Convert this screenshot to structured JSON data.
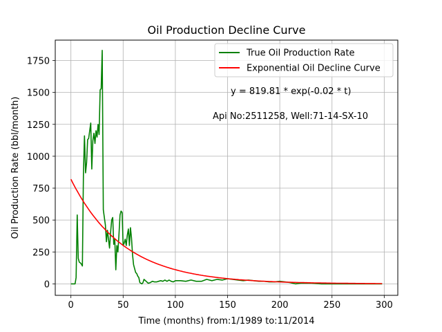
{
  "chart_data": {
    "type": "line",
    "title": "Oil Production Decline Curve",
    "xlabel": "Time (months) from:1/1989 to:11/2014",
    "ylabel": "Oil Production Rate (bbl/month)",
    "xlim": [
      -15,
      313
    ],
    "ylim": [
      -90,
      1910
    ],
    "xticks": [
      0,
      50,
      100,
      150,
      200,
      250,
      300
    ],
    "yticks": [
      0,
      250,
      500,
      750,
      1000,
      1250,
      1500,
      1750
    ],
    "grid": true,
    "legend_position": "top-right",
    "annotations": [
      "y = 819.81 * exp(-0.02 * t)",
      "Api No:2511258, Well:71-14-SX-10"
    ],
    "series": [
      {
        "name": "True Oil Production Rate",
        "color": "#008000",
        "x": [
          0,
          2,
          4,
          5,
          6,
          7,
          8,
          9,
          10,
          11,
          12,
          13,
          14,
          15,
          16,
          17,
          18,
          19,
          20,
          21,
          22,
          23,
          24,
          25,
          26,
          27,
          28,
          29,
          30,
          31,
          32,
          33,
          34,
          35,
          36,
          37,
          38,
          39,
          40,
          41,
          42,
          43,
          44,
          45,
          46,
          47,
          48,
          49,
          50,
          51,
          52,
          53,
          54,
          55,
          56,
          57,
          58,
          59,
          60,
          61,
          62,
          63,
          64,
          65,
          66,
          67,
          68,
          69,
          70,
          72,
          74,
          76,
          78,
          80,
          82,
          84,
          86,
          88,
          90,
          92,
          94,
          96,
          98,
          100,
          105,
          110,
          115,
          120,
          125,
          130,
          135,
          140,
          145,
          150,
          155,
          160,
          165,
          170,
          175,
          180,
          185,
          190,
          195,
          200,
          205,
          210,
          215,
          220,
          230,
          240,
          250,
          260,
          270,
          280,
          290,
          298
        ],
        "values": [
          0,
          0,
          0,
          50,
          540,
          200,
          170,
          165,
          155,
          140,
          860,
          1160,
          870,
          950,
          1130,
          1140,
          1200,
          1260,
          900,
          1120,
          1180,
          1100,
          1200,
          1150,
          1250,
          1170,
          1520,
          1530,
          1830,
          580,
          520,
          460,
          330,
          420,
          350,
          280,
          400,
          500,
          520,
          310,
          350,
          110,
          300,
          250,
          380,
          540,
          570,
          560,
          300,
          320,
          350,
          300,
          380,
          430,
          300,
          440,
          360,
          230,
          150,
          120,
          90,
          80,
          60,
          50,
          10,
          5,
          0,
          10,
          35,
          20,
          5,
          10,
          20,
          15,
          15,
          20,
          25,
          20,
          30,
          20,
          30,
          20,
          15,
          25,
          25,
          20,
          30,
          20,
          20,
          35,
          25,
          35,
          30,
          40,
          35,
          30,
          25,
          30,
          25,
          20,
          20,
          15,
          15,
          20,
          15,
          10,
          0,
          5,
          5,
          0,
          0,
          0,
          0,
          0,
          0,
          0
        ]
      },
      {
        "name": "Exponential Oil Decline Curve",
        "color": "#ff0000",
        "function": {
          "a": 819.81,
          "b": -0.02
        },
        "x_range": [
          0,
          298
        ]
      }
    ]
  }
}
